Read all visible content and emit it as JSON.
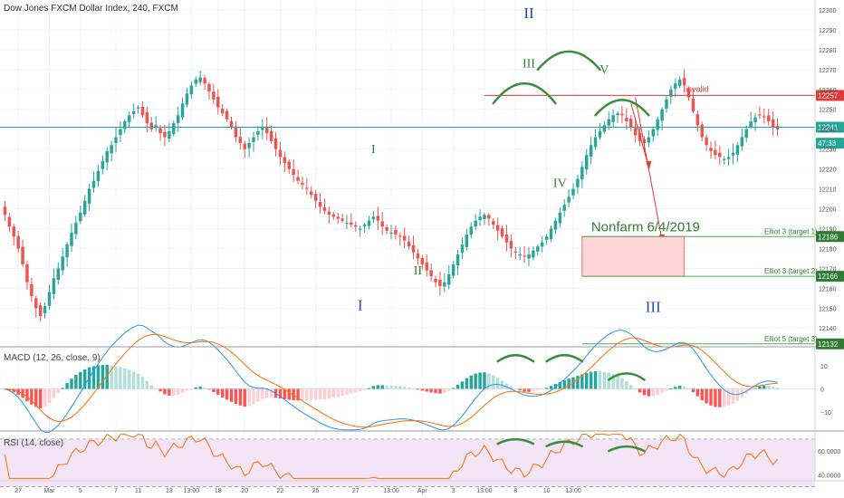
{
  "header": {
    "symbol": "Dow Jones FXCM Dollar Index, 240, FXCM"
  },
  "colors": {
    "up": "#26a69a",
    "down": "#ef5350",
    "grid": "#f0f3fa",
    "hline": "#26a69a",
    "invalid": "#e53935",
    "target_line": "#4caf50",
    "target_box_fill": "#ffd6d6",
    "target_box_border": "#e57373",
    "wave_blue": "#1e4fb5",
    "wave_green": "#2e7d32",
    "arc": "#388e3c",
    "macd_line": "#2196f3",
    "signal_line": "#ff6d00",
    "rsi_line": "#ff6d00",
    "rsi_band": "#f3e5f5"
  },
  "chart_data": [
    {
      "type": "candlestick",
      "title": "Dow Jones FXCM Dollar Index, 240, FXCM",
      "ylim": [
        12131,
        12305
      ],
      "y_ticks": [
        "12300",
        "12290",
        "12280",
        "12270",
        "12260",
        "12250",
        "12240",
        "12230",
        "12220",
        "12210",
        "12200",
        "12190",
        "12180",
        "12170",
        "12160",
        "12150",
        "12140"
      ],
      "x_ticks": [
        "27",
        "Mar",
        "5",
        "7",
        "11",
        "13",
        "13:00",
        "18",
        "20",
        "22",
        "25",
        "27",
        "13:00",
        "Apr",
        "3",
        "13:00",
        "8",
        "10",
        "13:00"
      ],
      "closes": [
        12197,
        12191,
        12186,
        12180,
        12172,
        12163,
        12156,
        12150,
        12146,
        12151,
        12158,
        12165,
        12170,
        12176,
        12182,
        12188,
        12193,
        12198,
        12204,
        12210,
        12214,
        12219,
        12224,
        12229,
        12232,
        12236,
        12240,
        12244,
        12247,
        12249,
        12251,
        12247,
        12243,
        12240,
        12242,
        12238,
        12236,
        12239,
        12243,
        12247,
        12253,
        12258,
        12262,
        12265,
        12266,
        12263,
        12259,
        12255,
        12251,
        12248,
        12245,
        12241,
        12236,
        12233,
        12230,
        12233,
        12236,
        12239,
        12241,
        12238,
        12234,
        12230,
        12226,
        12223,
        12220,
        12217,
        12214,
        12212,
        12210,
        12207,
        12204,
        12201,
        12199,
        12197,
        12196,
        12195,
        12194,
        12193,
        12192,
        12191,
        12190,
        12192,
        12194,
        12196,
        12194,
        12191,
        12189,
        12188,
        12187,
        12186,
        12184,
        12181,
        12178,
        12175,
        12172,
        12169,
        12166,
        12163,
        12161,
        12163,
        12167,
        12172,
        12177,
        12182,
        12187,
        12191,
        12194,
        12196,
        12197,
        12195,
        12192,
        12189,
        12186,
        12183,
        12180,
        12178,
        12177,
        12176,
        12177,
        12179,
        12181,
        12183,
        12186,
        12190,
        12194,
        12198,
        12202,
        12206,
        12210,
        12215,
        12221,
        12227,
        12232,
        12236,
        12239,
        12242,
        12245,
        12247,
        12248,
        12247,
        12244,
        12241,
        12237,
        12234,
        12233,
        12236,
        12240,
        12245,
        12250,
        12255,
        12260,
        12263,
        12265,
        12262,
        12256,
        12249,
        12242,
        12236,
        12232,
        12229,
        12227,
        12226,
        12225,
        12226,
        12228,
        12232,
        12236,
        12240,
        12244,
        12246,
        12247,
        12246,
        12244,
        12241,
        12240
      ],
      "annotations": {
        "wave_labels": [
          {
            "text": "II",
            "style": "blue",
            "i": 118,
            "price": 12296
          },
          {
            "text": "III",
            "style": "green",
            "i": 118,
            "price": 12271
          },
          {
            "text": "V",
            "style": "green",
            "i": 135,
            "price": 12268
          },
          {
            "text": "I",
            "style": "green",
            "i": 83,
            "price": 12228
          },
          {
            "text": "IV",
            "style": "green",
            "i": 125,
            "price": 12211
          },
          {
            "text": "II",
            "style": "green",
            "i": 93,
            "price": 12167
          },
          {
            "text": "I",
            "style": "blue",
            "i": 80,
            "price": 12149
          },
          {
            "text": "III",
            "style": "blue",
            "i": 146,
            "price": 12148
          }
        ],
        "invalid_label": "invalid",
        "invalid_price": 12257,
        "nonfarm_label": "Nonfarm 6/4/2019",
        "horizontal_line_price": 12241,
        "targets": [
          {
            "label": "Elliot 3 (target 1)",
            "price": 12186
          },
          {
            "label": "Elliot 3 (target 2)",
            "price": 12166
          },
          {
            "label": "Elliot 5 (target 3)",
            "price": 12132
          }
        ],
        "price_tags": [
          {
            "text": "12257",
            "kind": "red",
            "price": 12257
          },
          {
            "text": "12241",
            "kind": "green",
            "price": 12241
          },
          {
            "text": "47:33",
            "kind": "green-sub",
            "price": 12233
          },
          {
            "text": "12186",
            "kind": "dkgreen",
            "price": 12186
          },
          {
            "text": "12166",
            "kind": "dkgreen",
            "price": 12166
          },
          {
            "text": "12132",
            "kind": "dkgreen",
            "price": 12132
          }
        ]
      }
    },
    {
      "type": "bar+line",
      "title": "MACD (12, 26, close, 9)",
      "ylim": [
        -18,
        18
      ],
      "y_ticks": [
        "10",
        "0",
        "−10"
      ],
      "y_tick_values": [
        10,
        0,
        -10
      ]
    },
    {
      "type": "line",
      "title": "RSI (14, close)",
      "ylim": [
        35,
        76
      ],
      "y_ticks": [
        "60.0000",
        "40.0000"
      ],
      "y_tick_values": [
        60,
        40
      ],
      "band": [
        30,
        70
      ]
    }
  ]
}
